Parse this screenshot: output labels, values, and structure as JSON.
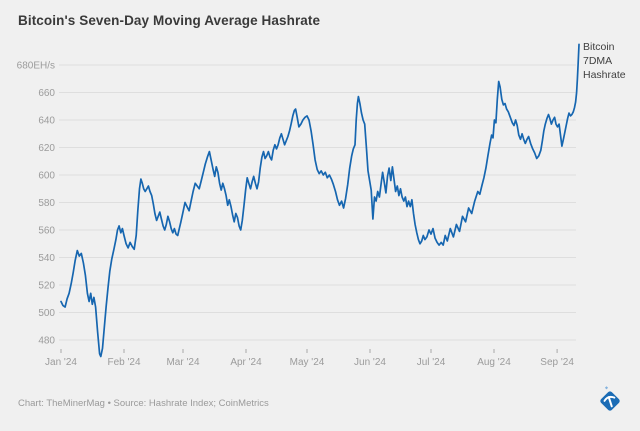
{
  "header": {
    "title": "Bitcoin's Seven-Day Moving Average Hashrate"
  },
  "legend": {
    "lines": [
      "Bitcoin",
      "7DMA",
      "Hashrate"
    ]
  },
  "footer": {
    "attribution": "Chart: TheMinerMag • Source: Hashrate Index; CoinMetrics"
  },
  "logo": {
    "description": "blue diamond with white pickaxe",
    "color": "#1b6cb5",
    "sparkle_color": "#85b3de"
  },
  "colors": {
    "background": "#f0f0f0",
    "line": "#1666b0",
    "grid": "#dedede",
    "axis_text": "#9b9b9b",
    "tick_mark": "#a8a8a8",
    "title_text": "#3a3a3a",
    "legend_text": "#404040"
  },
  "chart_data": {
    "type": "line",
    "title": "Bitcoin's Seven-Day Moving Average Hashrate",
    "ylabel": "EH/s",
    "xlabel": "",
    "grid": "horizontal",
    "legend_position": "right of line end",
    "ylim": [
      460,
      700
    ],
    "y_ticks": [
      480,
      500,
      520,
      540,
      560,
      580,
      600,
      620,
      640,
      660,
      680
    ],
    "y_top_tick_label": "680EH/s",
    "x_unit": "days since 2024-01-01",
    "x_ticks": [
      {
        "label": "Jan '24",
        "day": 0
      },
      {
        "label": "Feb '24",
        "day": 31
      },
      {
        "label": "Mar '24",
        "day": 60
      },
      {
        "label": "Apr '24",
        "day": 91
      },
      {
        "label": "May '24",
        "day": 121
      },
      {
        "label": "Jun '24",
        "day": 152
      },
      {
        "label": "Jul '24",
        "day": 182
      },
      {
        "label": "Aug '24",
        "day": 213
      },
      {
        "label": "Sep '24",
        "day": 244
      }
    ],
    "series": [
      {
        "name": "Bitcoin 7DMA Hashrate",
        "unit": "EH/s",
        "points": [
          [
            0,
            508
          ],
          [
            1,
            505
          ],
          [
            2,
            504
          ],
          [
            3,
            510
          ],
          [
            4,
            514
          ],
          [
            5,
            521
          ],
          [
            6,
            529
          ],
          [
            7,
            538
          ],
          [
            8,
            545
          ],
          [
            9,
            541
          ],
          [
            10,
            543
          ],
          [
            11,
            536
          ],
          [
            12,
            527
          ],
          [
            13,
            514
          ],
          [
            13.8,
            508
          ],
          [
            14.6,
            514
          ],
          [
            15.4,
            506
          ],
          [
            16.2,
            511
          ],
          [
            17,
            504
          ],
          [
            18,
            486
          ],
          [
            19,
            470
          ],
          [
            19.6,
            468
          ],
          [
            20.4,
            474
          ],
          [
            21.3,
            489
          ],
          [
            22.2,
            504
          ],
          [
            23.1,
            518
          ],
          [
            24,
            530
          ],
          [
            25,
            539
          ],
          [
            26,
            546
          ],
          [
            27,
            553
          ],
          [
            27.8,
            560
          ],
          [
            28.6,
            563
          ],
          [
            29.4,
            558
          ],
          [
            30.2,
            561
          ],
          [
            31,
            556
          ],
          [
            32,
            550
          ],
          [
            33,
            547
          ],
          [
            34,
            551
          ],
          [
            35,
            548
          ],
          [
            36,
            546
          ],
          [
            37,
            556
          ],
          [
            37.8,
            574
          ],
          [
            38.6,
            590
          ],
          [
            39.3,
            597
          ],
          [
            40,
            594
          ],
          [
            40.7,
            590
          ],
          [
            41.4,
            588
          ],
          [
            42.2,
            590
          ],
          [
            43,
            592
          ],
          [
            43.8,
            588
          ],
          [
            44.6,
            585
          ],
          [
            45.4,
            579
          ],
          [
            46.2,
            572
          ],
          [
            47,
            567
          ],
          [
            47.8,
            570
          ],
          [
            48.6,
            573
          ],
          [
            49.4,
            568
          ],
          [
            50.2,
            563
          ],
          [
            51,
            560
          ],
          [
            51.8,
            564
          ],
          [
            52.6,
            570
          ],
          [
            53.4,
            566
          ],
          [
            54.2,
            561
          ],
          [
            55,
            558
          ],
          [
            55.8,
            561
          ],
          [
            56.6,
            557
          ],
          [
            57.4,
            556
          ],
          [
            58.2,
            561
          ],
          [
            59,
            566
          ],
          [
            60,
            573
          ],
          [
            61,
            580
          ],
          [
            62,
            577
          ],
          [
            63,
            574
          ],
          [
            64,
            581
          ],
          [
            65,
            588
          ],
          [
            66,
            594
          ],
          [
            67,
            592
          ],
          [
            68,
            590
          ],
          [
            69,
            596
          ],
          [
            70,
            602
          ],
          [
            71,
            608
          ],
          [
            72,
            613
          ],
          [
            73,
            617
          ],
          [
            74,
            610
          ],
          [
            74.8,
            604
          ],
          [
            75.6,
            599
          ],
          [
            76.4,
            606
          ],
          [
            77.2,
            602
          ],
          [
            78,
            594
          ],
          [
            78.8,
            589
          ],
          [
            79.6,
            594
          ],
          [
            80.4,
            590
          ],
          [
            81.2,
            585
          ],
          [
            82,
            578
          ],
          [
            82.8,
            582
          ],
          [
            83.6,
            577
          ],
          [
            84.4,
            571
          ],
          [
            85.2,
            566
          ],
          [
            86,
            572
          ],
          [
            86.8,
            569
          ],
          [
            87.6,
            563
          ],
          [
            88.4,
            560
          ],
          [
            89.2,
            567
          ],
          [
            90,
            578
          ],
          [
            90.8,
            589
          ],
          [
            91.6,
            598
          ],
          [
            92.4,
            594
          ],
          [
            93.2,
            590
          ],
          [
            94,
            595
          ],
          [
            94.8,
            599
          ],
          [
            95.6,
            594
          ],
          [
            96.4,
            590
          ],
          [
            97.2,
            595
          ],
          [
            98,
            605
          ],
          [
            98.8,
            613
          ],
          [
            99.6,
            617
          ],
          [
            100.4,
            612
          ],
          [
            101.2,
            614
          ],
          [
            102,
            617
          ],
          [
            102.8,
            613
          ],
          [
            103.6,
            611
          ],
          [
            104.4,
            618
          ],
          [
            105.2,
            622
          ],
          [
            106,
            619
          ],
          [
            106.8,
            622
          ],
          [
            107.6,
            627
          ],
          [
            108.4,
            630
          ],
          [
            109.2,
            626
          ],
          [
            110,
            622
          ],
          [
            110.8,
            625
          ],
          [
            111.6,
            628
          ],
          [
            112.4,
            632
          ],
          [
            113.2,
            637
          ],
          [
            114,
            643
          ],
          [
            114.8,
            647
          ],
          [
            115.4,
            648
          ],
          [
            116.2,
            642
          ],
          [
            117,
            635
          ],
          [
            118,
            637
          ],
          [
            119,
            640
          ],
          [
            120,
            642
          ],
          [
            121,
            643
          ],
          [
            122,
            640
          ],
          [
            123,
            632
          ],
          [
            124,
            622
          ],
          [
            125,
            611
          ],
          [
            126,
            604
          ],
          [
            127,
            601
          ],
          [
            128,
            603
          ],
          [
            129,
            600
          ],
          [
            130,
            602
          ],
          [
            131,
            598
          ],
          [
            132,
            600
          ],
          [
            133,
            597
          ],
          [
            134,
            593
          ],
          [
            135,
            588
          ],
          [
            136,
            582
          ],
          [
            137,
            578
          ],
          [
            138,
            581
          ],
          [
            139,
            576
          ],
          [
            140,
            583
          ],
          [
            141,
            593
          ],
          [
            142,
            605
          ],
          [
            143,
            614
          ],
          [
            143.8,
            619
          ],
          [
            144.6,
            622
          ],
          [
            145.2,
            640
          ],
          [
            145.8,
            652
          ],
          [
            146.3,
            657
          ],
          [
            147,
            652
          ],
          [
            147.8,
            645
          ],
          [
            148.6,
            640
          ],
          [
            149.4,
            637
          ],
          [
            150.2,
            620
          ],
          [
            151,
            603
          ],
          [
            151.8,
            596
          ],
          [
            152.6,
            589
          ],
          [
            153.4,
            568
          ],
          [
            154.2,
            584
          ],
          [
            155,
            581
          ],
          [
            155.8,
            588
          ],
          [
            156.6,
            584
          ],
          [
            157.4,
            593
          ],
          [
            158.2,
            602
          ],
          [
            159,
            595
          ],
          [
            159.8,
            587
          ],
          [
            160.6,
            599
          ],
          [
            161.4,
            605
          ],
          [
            162.2,
            596
          ],
          [
            163,
            606
          ],
          [
            163.8,
            597
          ],
          [
            164.6,
            588
          ],
          [
            165.4,
            592
          ],
          [
            166.2,
            585
          ],
          [
            167,
            590
          ],
          [
            167.8,
            584
          ],
          [
            168.6,
            581
          ],
          [
            169.4,
            584
          ],
          [
            170.2,
            577
          ],
          [
            171,
            581
          ],
          [
            171.8,
            577
          ],
          [
            172.6,
            582
          ],
          [
            173.4,
            572
          ],
          [
            174.2,
            564
          ],
          [
            175,
            558
          ],
          [
            175.8,
            553
          ],
          [
            176.6,
            550
          ],
          [
            177.4,
            552
          ],
          [
            178.2,
            556
          ],
          [
            179,
            553
          ],
          [
            180,
            555
          ],
          [
            181,
            560
          ],
          [
            182,
            557
          ],
          [
            183,
            561
          ],
          [
            184,
            554
          ],
          [
            185,
            551
          ],
          [
            186,
            549
          ],
          [
            187,
            551
          ],
          [
            188,
            549
          ],
          [
            189,
            556
          ],
          [
            190,
            552
          ],
          [
            191.5,
            561
          ],
          [
            193,
            555
          ],
          [
            194.5,
            564
          ],
          [
            196,
            559
          ],
          [
            197.5,
            570
          ],
          [
            199,
            566
          ],
          [
            200.5,
            576
          ],
          [
            202,
            572
          ],
          [
            203.5,
            581
          ],
          [
            205,
            588
          ],
          [
            206,
            586
          ],
          [
            207,
            592
          ],
          [
            208,
            598
          ],
          [
            209,
            605
          ],
          [
            210,
            614
          ],
          [
            211,
            623
          ],
          [
            211.8,
            629
          ],
          [
            212.5,
            627
          ],
          [
            213.2,
            640
          ],
          [
            213.9,
            638
          ],
          [
            214.6,
            655
          ],
          [
            215.3,
            668
          ],
          [
            216,
            664
          ],
          [
            216.8,
            655
          ],
          [
            217.6,
            651
          ],
          [
            218.4,
            652
          ],
          [
            219.2,
            648
          ],
          [
            220,
            646
          ],
          [
            221,
            642
          ],
          [
            222,
            638
          ],
          [
            222.8,
            636
          ],
          [
            223.6,
            640
          ],
          [
            224.4,
            636
          ],
          [
            225.2,
            629
          ],
          [
            226,
            626
          ],
          [
            226.8,
            630
          ],
          [
            227.6,
            626
          ],
          [
            228.4,
            623
          ],
          [
            229.2,
            626
          ],
          [
            230,
            628
          ],
          [
            231,
            623
          ],
          [
            232,
            619
          ],
          [
            233,
            616
          ],
          [
            234,
            612
          ],
          [
            235,
            614
          ],
          [
            236,
            618
          ],
          [
            236.8,
            625
          ],
          [
            237.5,
            632
          ],
          [
            238.2,
            637
          ],
          [
            239,
            641
          ],
          [
            239.8,
            644
          ],
          [
            240.5,
            641
          ],
          [
            241.2,
            637
          ],
          [
            242,
            640
          ],
          [
            242.8,
            642
          ],
          [
            243.5,
            637
          ],
          [
            244.2,
            635
          ],
          [
            245,
            637
          ],
          [
            245.7,
            629
          ],
          [
            246.4,
            621
          ],
          [
            247.1,
            626
          ],
          [
            247.8,
            631
          ],
          [
            248.5,
            636
          ],
          [
            249.2,
            641
          ],
          [
            249.9,
            645
          ],
          [
            250.6,
            643
          ],
          [
            251.3,
            644
          ],
          [
            252,
            646
          ],
          [
            252.6,
            649
          ],
          [
            253.1,
            653
          ],
          [
            253.6,
            660
          ],
          [
            254,
            670
          ],
          [
            254.4,
            682
          ],
          [
            254.8,
            695
          ]
        ]
      }
    ]
  }
}
